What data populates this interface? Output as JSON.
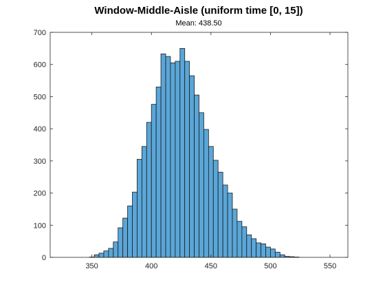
{
  "chart_data": {
    "type": "bar",
    "title": "Window-Middle-Aisle (uniform time [0, 15])",
    "subtitle": "Mean: 438.50",
    "xlabel": "",
    "ylabel": "",
    "xlim": [
      315,
      565
    ],
    "ylim": [
      0,
      700
    ],
    "x_ticks": [
      350,
      400,
      450,
      500,
      550
    ],
    "y_ticks": [
      0,
      100,
      200,
      300,
      400,
      500,
      600,
      700
    ],
    "x_tick_labels": [
      "350",
      "400",
      "450",
      "500",
      "550"
    ],
    "y_tick_labels": [
      "0",
      "100",
      "200",
      "300",
      "400",
      "500",
      "600",
      "700"
    ],
    "bin_width": 4,
    "bin_edges_start": 348,
    "values": [
      1,
      8,
      13,
      20,
      28,
      48,
      92,
      122,
      160,
      203,
      305,
      345,
      420,
      476,
      530,
      633,
      625,
      605,
      610,
      650,
      610,
      565,
      505,
      450,
      398,
      345,
      302,
      265,
      225,
      200,
      150,
      112,
      95,
      70,
      58,
      45,
      42,
      32,
      26,
      16,
      8,
      3,
      2,
      1
    ],
    "bar_color": "#5aa6d8",
    "grid": false,
    "legend": "none"
  }
}
